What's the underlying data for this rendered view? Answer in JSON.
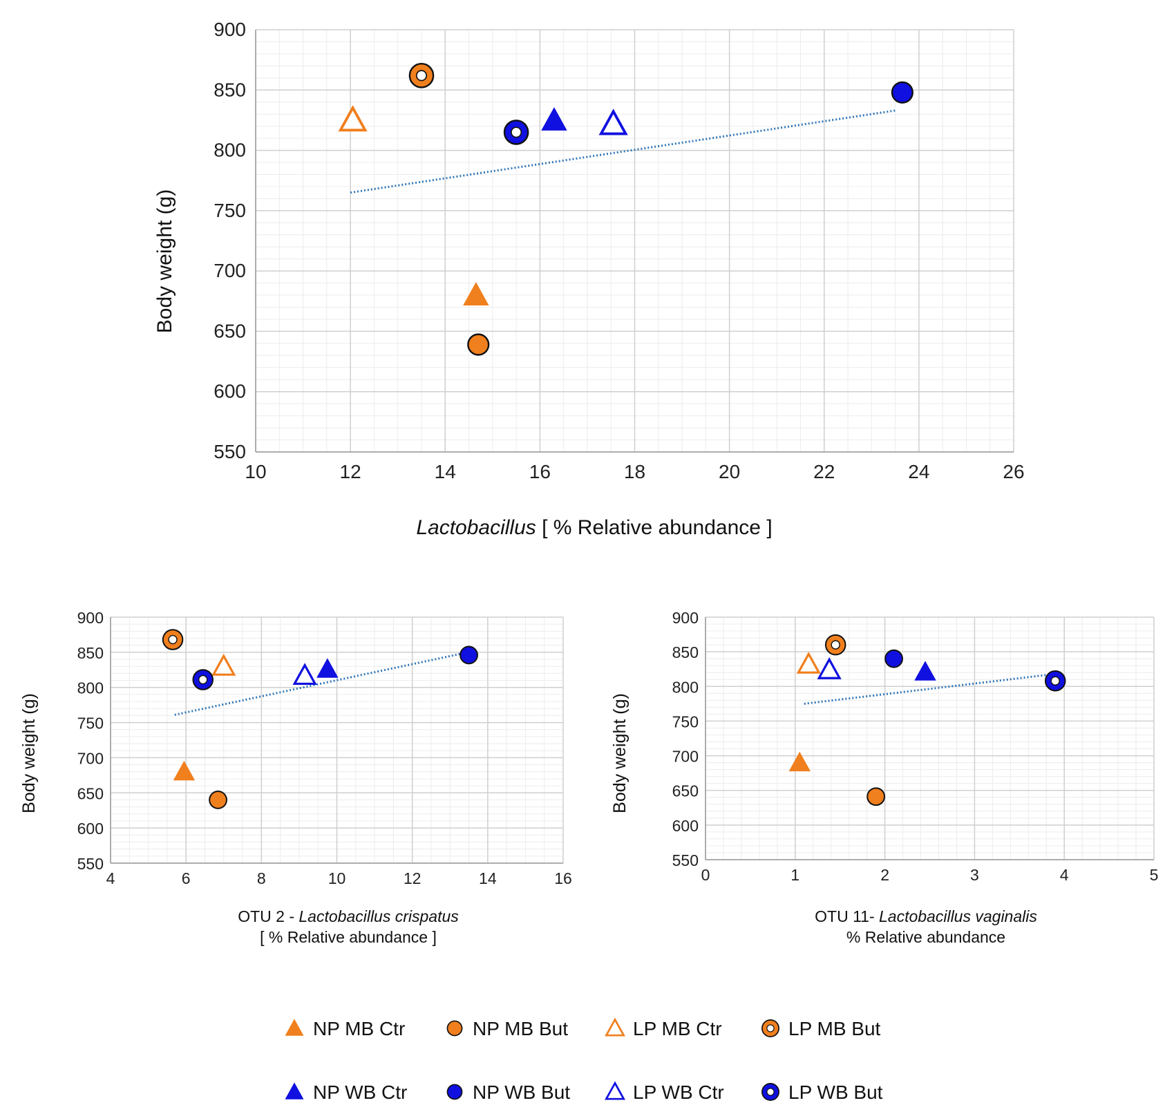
{
  "colors": {
    "orange": "#F07F1D",
    "blue": "#1010E0",
    "trend": "#2E75B6",
    "grid_major": "#cfcfcf",
    "grid_minor": "#ececec",
    "axis": "#bdbdbd"
  },
  "chart_data": [
    {
      "id": "main",
      "type": "scatter",
      "xlabel_italic": "Lactobacillus",
      "xlabel_rest": "[ % Relative abundance ]",
      "ylabel": "Body weight (g)",
      "xlim": [
        10,
        26
      ],
      "xticks": [
        10,
        12,
        14,
        16,
        18,
        20,
        22,
        24,
        26
      ],
      "ylim": [
        550,
        900
      ],
      "yticks": [
        550,
        600,
        650,
        700,
        750,
        800,
        850,
        900
      ],
      "trend": {
        "x": [
          12.0,
          23.5
        ],
        "y": [
          765,
          833
        ]
      },
      "points": [
        {
          "group": "NP MB Ctr",
          "x": 14.65,
          "y": 680
        },
        {
          "group": "NP MB But",
          "x": 14.7,
          "y": 639
        },
        {
          "group": "LP MB Ctr",
          "x": 12.05,
          "y": 825
        },
        {
          "group": "LP MB But",
          "x": 13.5,
          "y": 862
        },
        {
          "group": "NP WB Ctr",
          "x": 16.3,
          "y": 825
        },
        {
          "group": "NP WB But",
          "x": 23.65,
          "y": 848
        },
        {
          "group": "LP WB Ctr",
          "x": 17.55,
          "y": 822
        },
        {
          "group": "LP WB But",
          "x": 15.5,
          "y": 815
        }
      ]
    },
    {
      "id": "otu2",
      "type": "scatter",
      "xlabel_prefix": "OTU 2 - ",
      "xlabel_italic": "Lactobacillus crispatus",
      "xlabel_line2": "[ % Relative abundance ]",
      "ylabel": "Body weight (g)",
      "xlim": [
        4,
        16
      ],
      "xticks": [
        4,
        6,
        8,
        10,
        12,
        14,
        16
      ],
      "ylim": [
        550,
        900
      ],
      "yticks": [
        550,
        600,
        650,
        700,
        750,
        800,
        850,
        900
      ],
      "trend": {
        "x": [
          5.7,
          13.3
        ],
        "y": [
          761,
          848
        ]
      },
      "points": [
        {
          "group": "NP MB Ctr",
          "x": 5.95,
          "y": 680
        },
        {
          "group": "NP MB But",
          "x": 6.85,
          "y": 640
        },
        {
          "group": "LP MB Ctr",
          "x": 7.0,
          "y": 830
        },
        {
          "group": "LP MB But",
          "x": 5.65,
          "y": 868
        },
        {
          "group": "NP WB Ctr",
          "x": 9.75,
          "y": 826
        },
        {
          "group": "NP WB But",
          "x": 13.5,
          "y": 846
        },
        {
          "group": "LP WB Ctr",
          "x": 9.15,
          "y": 817
        },
        {
          "group": "LP WB But",
          "x": 6.45,
          "y": 811
        }
      ]
    },
    {
      "id": "otu11",
      "type": "scatter",
      "xlabel_prefix": "OTU 11- ",
      "xlabel_italic": "Lactobacillus vaginalis",
      "xlabel_line2": "% Relative abundance",
      "ylabel": "Body weight (g)",
      "xlim": [
        0,
        5
      ],
      "xticks": [
        0,
        1,
        2,
        3,
        4,
        5
      ],
      "ylim": [
        550,
        900
      ],
      "yticks": [
        550,
        600,
        650,
        700,
        750,
        800,
        850,
        900
      ],
      "trend": {
        "x": [
          1.1,
          3.9
        ],
        "y": [
          775,
          818
        ]
      },
      "points": [
        {
          "group": "NP MB Ctr",
          "x": 1.05,
          "y": 690
        },
        {
          "group": "NP MB But",
          "x": 1.9,
          "y": 641
        },
        {
          "group": "LP MB Ctr",
          "x": 1.15,
          "y": 832
        },
        {
          "group": "LP MB But",
          "x": 1.45,
          "y": 860
        },
        {
          "group": "NP WB Ctr",
          "x": 2.45,
          "y": 821
        },
        {
          "group": "NP WB But",
          "x": 2.1,
          "y": 840
        },
        {
          "group": "LP WB Ctr",
          "x": 1.38,
          "y": 824
        },
        {
          "group": "LP WB But",
          "x": 3.9,
          "y": 808
        }
      ]
    }
  ],
  "legend": [
    {
      "label": "NP MB Ctr",
      "color": "orange",
      "shape": "triangle",
      "fill": "solid"
    },
    {
      "label": "NP MB But",
      "color": "orange",
      "shape": "circle",
      "fill": "solid"
    },
    {
      "label": "LP MB Ctr",
      "color": "orange",
      "shape": "triangle",
      "fill": "open"
    },
    {
      "label": "LP MB But",
      "color": "orange",
      "shape": "circle",
      "fill": "ring"
    },
    {
      "label": "NP WB Ctr",
      "color": "blue",
      "shape": "triangle",
      "fill": "solid"
    },
    {
      "label": "NP WB But",
      "color": "blue",
      "shape": "circle",
      "fill": "solid"
    },
    {
      "label": "LP WB Ctr",
      "color": "blue",
      "shape": "triangle",
      "fill": "open"
    },
    {
      "label": "LP WB But",
      "color": "blue",
      "shape": "circle",
      "fill": "ring"
    }
  ]
}
